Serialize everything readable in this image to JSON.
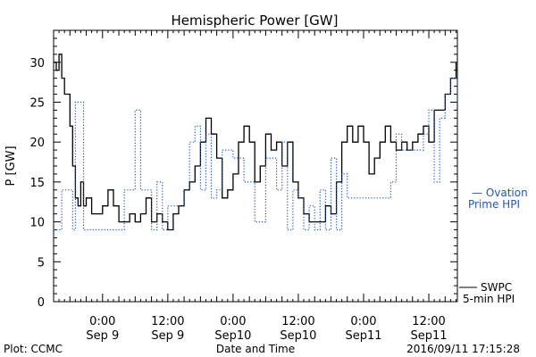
{
  "chart_data": {
    "type": "line",
    "title": "Hemispheric Power [GW]",
    "xlabel": "Date and Time",
    "ylabel": "P [GW]",
    "ylim": [
      0,
      34
    ],
    "yticks": [
      0,
      5,
      10,
      15,
      20,
      25,
      30
    ],
    "xlim": [
      "2016-09-08 15:00",
      "2016-09-11 17:15"
    ],
    "xticks": [
      {
        "t": "2016-09-09 00:00",
        "line1": "0:00",
        "line2": "Sep 9"
      },
      {
        "t": "2016-09-09 12:00",
        "line1": "12:00",
        "line2": "Sep 9"
      },
      {
        "t": "2016-09-10 00:00",
        "line1": "0:00",
        "line2": "Sep10"
      },
      {
        "t": "2016-09-10 12:00",
        "line1": "12:00",
        "line2": "Sep10"
      },
      {
        "t": "2016-09-11 00:00",
        "line1": "0:00",
        "line2": "Sep11"
      },
      {
        "t": "2016-09-11 12:00",
        "line1": "12:00",
        "line2": "Sep11"
      }
    ],
    "grid": false,
    "legend_position": "right",
    "series": [
      {
        "name_lines": [
          "SWPC",
          "5-min HPI"
        ],
        "color": "#000000",
        "style": "solid",
        "points": [
          [
            "2016-09-08 15:00",
            30
          ],
          [
            "2016-09-08 15:30",
            29
          ],
          [
            "2016-09-08 16:00",
            31
          ],
          [
            "2016-09-08 16:30",
            28
          ],
          [
            "2016-09-08 17:00",
            26
          ],
          [
            "2016-09-08 18:00",
            22
          ],
          [
            "2016-09-08 18:30",
            17
          ],
          [
            "2016-09-08 19:00",
            13
          ],
          [
            "2016-09-08 19:30",
            12
          ],
          [
            "2016-09-08 20:00",
            15
          ],
          [
            "2016-09-08 20:30",
            12
          ],
          [
            "2016-09-08 21:00",
            13
          ],
          [
            "2016-09-08 22:00",
            11
          ],
          [
            "2016-09-08 23:00",
            11
          ],
          [
            "2016-09-09 00:00",
            12
          ],
          [
            "2016-09-09 01:00",
            14
          ],
          [
            "2016-09-09 02:00",
            12
          ],
          [
            "2016-09-09 03:00",
            10
          ],
          [
            "2016-09-09 04:00",
            10
          ],
          [
            "2016-09-09 05:00",
            11
          ],
          [
            "2016-09-09 06:00",
            10
          ],
          [
            "2016-09-09 07:00",
            11
          ],
          [
            "2016-09-09 08:00",
            13
          ],
          [
            "2016-09-09 09:00",
            10
          ],
          [
            "2016-09-09 10:00",
            11
          ],
          [
            "2016-09-09 11:00",
            10
          ],
          [
            "2016-09-09 12:00",
            9
          ],
          [
            "2016-09-09 13:00",
            11
          ],
          [
            "2016-09-09 14:00",
            12
          ],
          [
            "2016-09-09 15:00",
            14
          ],
          [
            "2016-09-09 16:00",
            15
          ],
          [
            "2016-09-09 17:00",
            17
          ],
          [
            "2016-09-09 18:00",
            20
          ],
          [
            "2016-09-09 19:00",
            23
          ],
          [
            "2016-09-09 20:00",
            21
          ],
          [
            "2016-09-09 21:00",
            18
          ],
          [
            "2016-09-09 22:00",
            13
          ],
          [
            "2016-09-09 23:00",
            14
          ],
          [
            "2016-09-10 00:00",
            16
          ],
          [
            "2016-09-10 01:00",
            20
          ],
          [
            "2016-09-10 02:00",
            22
          ],
          [
            "2016-09-10 03:00",
            20
          ],
          [
            "2016-09-10 04:00",
            15
          ],
          [
            "2016-09-10 05:00",
            17
          ],
          [
            "2016-09-10 06:00",
            21
          ],
          [
            "2016-09-10 07:00",
            19
          ],
          [
            "2016-09-10 08:00",
            20
          ],
          [
            "2016-09-10 09:00",
            17
          ],
          [
            "2016-09-10 10:00",
            20
          ],
          [
            "2016-09-10 11:00",
            15
          ],
          [
            "2016-09-10 12:00",
            13
          ],
          [
            "2016-09-10 13:00",
            11
          ],
          [
            "2016-09-10 14:00",
            10
          ],
          [
            "2016-09-10 16:00",
            10
          ],
          [
            "2016-09-10 17:00",
            12
          ],
          [
            "2016-09-10 18:00",
            11
          ],
          [
            "2016-09-10 19:00",
            15
          ],
          [
            "2016-09-10 20:00",
            20
          ],
          [
            "2016-09-10 21:00",
            22
          ],
          [
            "2016-09-10 22:00",
            20
          ],
          [
            "2016-09-10 23:00",
            22
          ],
          [
            "2016-09-11 00:00",
            20
          ],
          [
            "2016-09-11 01:00",
            16
          ],
          [
            "2016-09-11 02:00",
            18
          ],
          [
            "2016-09-11 03:00",
            20
          ],
          [
            "2016-09-11 04:00",
            22
          ],
          [
            "2016-09-11 05:00",
            20
          ],
          [
            "2016-09-11 06:00",
            19
          ],
          [
            "2016-09-11 07:00",
            20
          ],
          [
            "2016-09-11 08:00",
            19
          ],
          [
            "2016-09-11 09:00",
            20
          ],
          [
            "2016-09-11 10:00",
            21
          ],
          [
            "2016-09-11 11:00",
            22
          ],
          [
            "2016-09-11 12:00",
            20
          ],
          [
            "2016-09-11 13:00",
            24
          ],
          [
            "2016-09-11 14:00",
            24
          ],
          [
            "2016-09-11 15:00",
            26
          ],
          [
            "2016-09-11 16:00",
            28
          ],
          [
            "2016-09-11 17:00",
            30
          ]
        ]
      },
      {
        "name_lines": [
          "— Ovation",
          "Prime HPI"
        ],
        "color": "#2255bb",
        "style": "dotted",
        "points": [
          [
            "2016-09-08 15:00",
            9
          ],
          [
            "2016-09-08 16:00",
            9
          ],
          [
            "2016-09-08 16:30",
            14
          ],
          [
            "2016-09-08 18:00",
            14
          ],
          [
            "2016-09-08 18:30",
            9
          ],
          [
            "2016-09-08 19:00",
            25
          ],
          [
            "2016-09-08 20:00",
            25
          ],
          [
            "2016-09-08 20:30",
            9
          ],
          [
            "2016-09-08 22:00",
            9
          ],
          [
            "2016-09-09 00:00",
            9
          ],
          [
            "2016-09-09 02:00",
            9
          ],
          [
            "2016-09-09 04:00",
            14
          ],
          [
            "2016-09-09 06:00",
            24
          ],
          [
            "2016-09-09 07:00",
            14
          ],
          [
            "2016-09-09 09:00",
            9
          ],
          [
            "2016-09-09 10:00",
            15
          ],
          [
            "2016-09-09 11:00",
            9
          ],
          [
            "2016-09-09 12:00",
            12
          ],
          [
            "2016-09-09 14:00",
            12
          ],
          [
            "2016-09-09 15:00",
            14
          ],
          [
            "2016-09-09 16:00",
            20
          ],
          [
            "2016-09-09 17:00",
            22
          ],
          [
            "2016-09-09 18:00",
            14
          ],
          [
            "2016-09-09 19:00",
            21
          ],
          [
            "2016-09-09 20:00",
            13
          ],
          [
            "2016-09-09 21:00",
            14
          ],
          [
            "2016-09-09 22:00",
            19
          ],
          [
            "2016-09-10 00:00",
            18
          ],
          [
            "2016-09-10 01:00",
            18
          ],
          [
            "2016-09-10 02:00",
            15
          ],
          [
            "2016-09-10 04:00",
            10
          ],
          [
            "2016-09-10 05:00",
            10
          ],
          [
            "2016-09-10 06:00",
            18
          ],
          [
            "2016-09-10 07:00",
            18
          ],
          [
            "2016-09-10 08:00",
            14
          ],
          [
            "2016-09-10 09:00",
            20
          ],
          [
            "2016-09-10 10:00",
            9
          ],
          [
            "2016-09-10 11:00",
            14
          ],
          [
            "2016-09-10 12:00",
            13
          ],
          [
            "2016-09-10 13:00",
            9
          ],
          [
            "2016-09-10 14:00",
            12
          ],
          [
            "2016-09-10 15:00",
            9
          ],
          [
            "2016-09-10 16:00",
            14
          ],
          [
            "2016-09-10 17:00",
            9
          ],
          [
            "2016-09-10 18:00",
            18
          ],
          [
            "2016-09-10 19:00",
            9
          ],
          [
            "2016-09-10 20:00",
            16
          ],
          [
            "2016-09-10 21:00",
            13
          ],
          [
            "2016-09-11 00:00",
            13
          ],
          [
            "2016-09-11 04:00",
            13
          ],
          [
            "2016-09-11 05:00",
            15
          ],
          [
            "2016-09-11 06:00",
            21
          ],
          [
            "2016-09-11 07:00",
            19
          ],
          [
            "2016-09-11 10:00",
            19
          ],
          [
            "2016-09-11 11:00",
            21
          ],
          [
            "2016-09-11 12:00",
            24
          ],
          [
            "2016-09-11 13:00",
            15
          ],
          [
            "2016-09-11 14:00",
            23
          ],
          [
            "2016-09-11 15:00",
            26
          ],
          [
            "2016-09-11 16:00",
            28
          ],
          [
            "2016-09-11 17:15",
            25
          ]
        ]
      }
    ]
  },
  "footer": {
    "left": "Plot: CCMC",
    "right": "2016/09/11 17:15:28"
  }
}
